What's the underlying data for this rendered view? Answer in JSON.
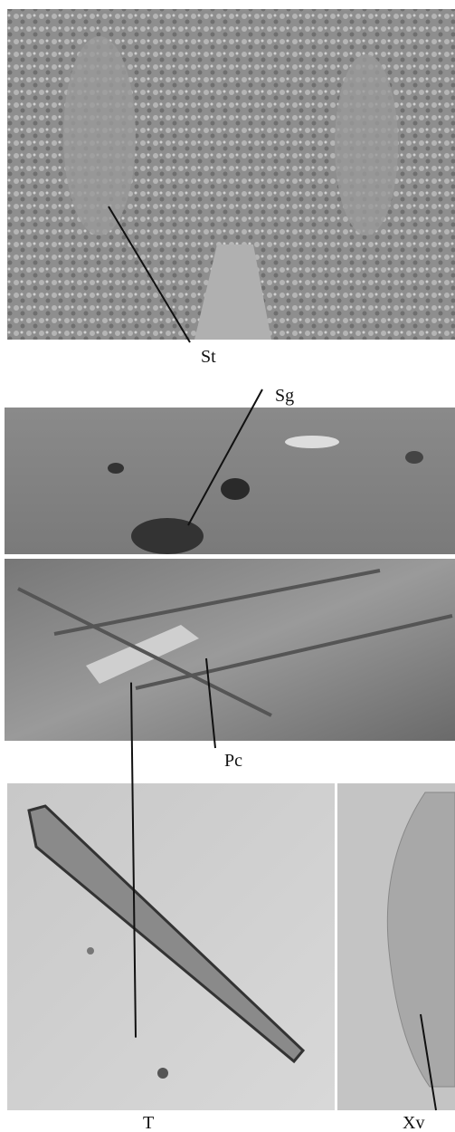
{
  "panels": [
    {
      "label": "St"
    },
    {
      "label": "Sg"
    },
    {
      "label": "Pc"
    },
    {
      "label": "T"
    },
    {
      "label": "Xv"
    }
  ]
}
